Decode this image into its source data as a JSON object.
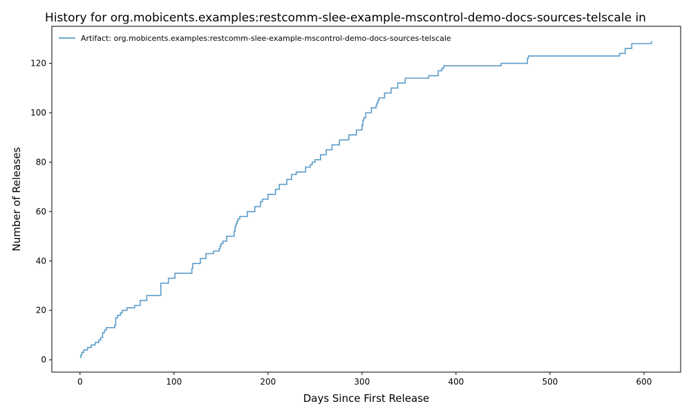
{
  "chart_data": {
    "type": "line",
    "title": "History for org.mobicents.examples:restcomm-slee-example-mscontrol-demo-docs-sources-telscale in",
    "xlabel": "Days Since First Release",
    "ylabel": "Number of Releases",
    "xlim": [
      -30,
      639
    ],
    "ylim": [
      -5,
      135
    ],
    "xticks": [
      0,
      100,
      200,
      300,
      400,
      500,
      600
    ],
    "yticks": [
      0,
      20,
      40,
      60,
      80,
      100,
      120
    ],
    "grid": false,
    "legend_position": "top-left",
    "step": "post",
    "series": [
      {
        "name": "Artifact: org.mobicents.examples:restcomm-slee-example-mscontrol-demo-docs-sources-telscale",
        "color": "#5b9bc8",
        "x": [
          0,
          1,
          2,
          4,
          8,
          12,
          16,
          20,
          22,
          24,
          26,
          28,
          37,
          38,
          40,
          43,
          45,
          50,
          58,
          64,
          71,
          86,
          94,
          101,
          119,
          120,
          128,
          134,
          142,
          148,
          149,
          150,
          152,
          156,
          164,
          165,
          166,
          167,
          168,
          170,
          178,
          186,
          192,
          194,
          200,
          208,
          212,
          220,
          225,
          230,
          240,
          245,
          247,
          250,
          256,
          262,
          268,
          276,
          286,
          294,
          300,
          301,
          302,
          304,
          310,
          315,
          316,
          317,
          318,
          324,
          331,
          338,
          346,
          371,
          381,
          385,
          387,
          448,
          476,
          477,
          574,
          580,
          587,
          608
        ],
        "y": [
          1,
          2,
          3,
          4,
          5,
          6,
          7,
          8,
          9,
          11,
          12,
          13,
          14,
          17,
          18,
          19,
          20,
          21,
          22,
          24,
          26,
          31,
          33,
          35,
          37,
          39,
          41,
          43,
          44,
          45,
          46,
          47,
          48,
          50,
          52,
          54,
          55,
          56,
          57,
          58,
          60,
          62,
          64,
          65,
          67,
          69,
          71,
          73,
          75,
          76,
          78,
          79,
          80,
          81,
          83,
          85,
          87,
          89,
          91,
          93,
          95,
          97,
          98,
          100,
          102,
          103,
          104,
          105,
          106,
          108,
          110,
          112,
          114,
          115,
          117,
          118,
          119,
          120,
          122,
          123,
          124,
          126,
          128,
          129
        ]
      }
    ]
  }
}
